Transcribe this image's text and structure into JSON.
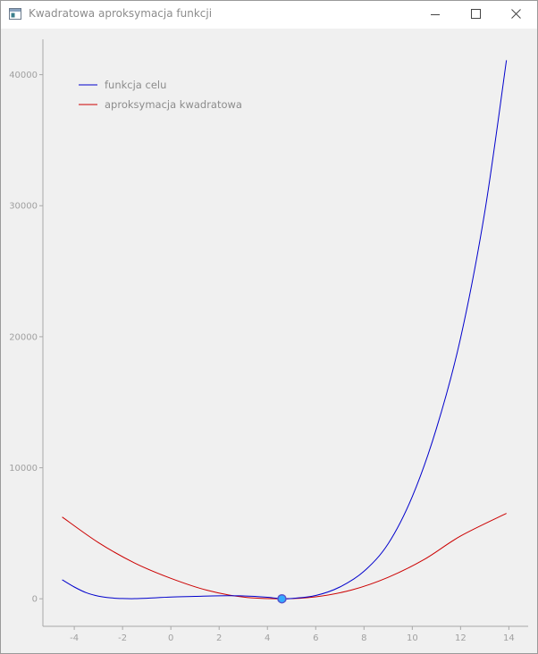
{
  "window": {
    "title": "Kwadratowa aproksymacja funkcji",
    "icon": "app-window-icon",
    "controls": [
      "minimize-icon",
      "maximize-icon",
      "close-icon"
    ]
  },
  "chart_data": {
    "type": "line",
    "title": "",
    "xlabel": "",
    "ylabel": "",
    "xlim": [
      -5.3,
      14.8
    ],
    "ylim": [
      -2100,
      42700
    ],
    "xticks": [
      -4,
      -2,
      0,
      2,
      4,
      6,
      8,
      10,
      12,
      14
    ],
    "yticks": [
      0,
      10000,
      20000,
      30000,
      40000
    ],
    "grid": false,
    "legend_position": "top-left",
    "series": [
      {
        "name": "funkcja celu",
        "color": "#0000cc",
        "x": [
          -4.5,
          -4,
          -3.5,
          -3,
          -2.5,
          -2,
          -1.5,
          -1,
          0,
          1,
          2,
          3,
          4,
          4.6,
          5,
          6,
          7,
          8,
          9,
          10,
          11,
          12,
          13,
          13.9
        ],
        "y": [
          1450,
          900,
          460,
          200,
          70,
          20,
          10,
          40,
          130,
          180,
          230,
          220,
          120,
          0,
          20,
          250,
          900,
          2100,
          4200,
          7800,
          13000,
          19900,
          29500,
          41100
        ]
      },
      {
        "name": "aproksymacja kwadratowa",
        "color": "#cc0000",
        "x": [
          -4.5,
          -3,
          -1.5,
          0,
          1.5,
          3,
          4.6,
          6,
          7.5,
          9,
          10.5,
          12,
          13.9
        ],
        "y": [
          6240,
          4290,
          2730,
          1560,
          650,
          130,
          0,
          150,
          680,
          1640,
          3010,
          4790,
          6520
        ]
      }
    ],
    "markers": [
      {
        "x": 4.6,
        "y": 0,
        "color": "#33aaff",
        "edge_color": "#5555cc"
      }
    ]
  }
}
